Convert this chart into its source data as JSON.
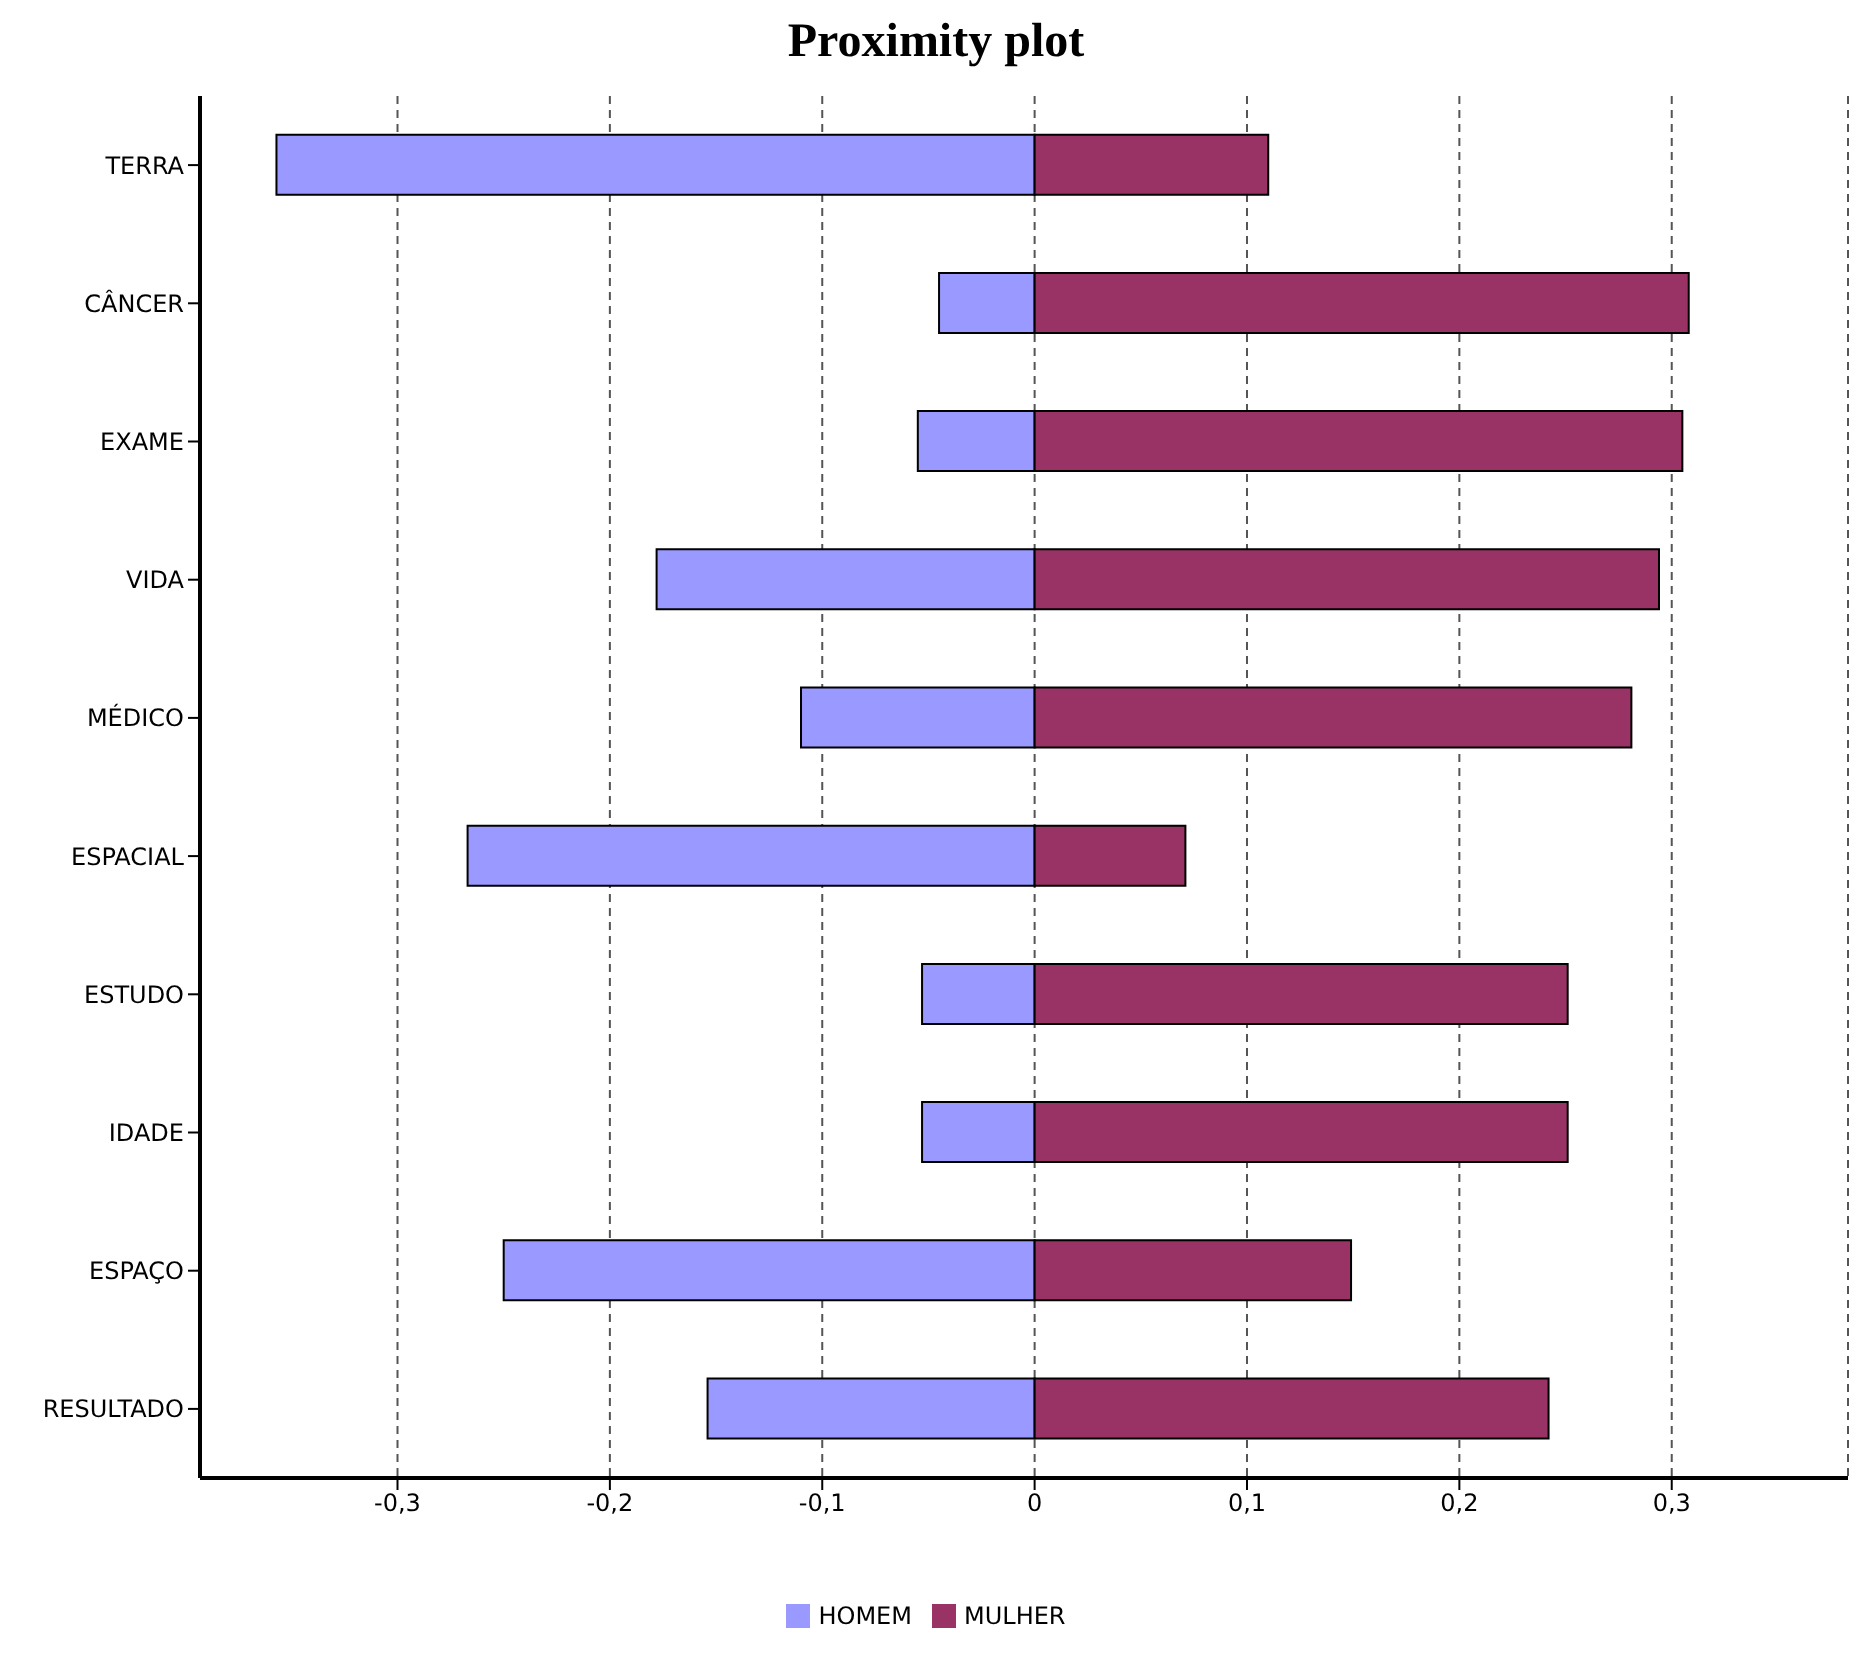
{
  "chart_data": {
    "type": "bar",
    "title": "Proximity plot",
    "orientation": "horizontal",
    "stacked": true,
    "categories": [
      "TERRA",
      "CÂNCER",
      "EXAME",
      "VIDA",
      "MÉDICO",
      "ESPACIAL",
      "ESTUDO",
      "IDADE",
      "ESPAÇO",
      "RESULTADO"
    ],
    "series": [
      {
        "name": "HOMEM",
        "color": "#9999ff",
        "values": [
          -0.357,
          -0.045,
          -0.055,
          -0.178,
          -0.11,
          -0.267,
          -0.053,
          -0.053,
          -0.25,
          -0.154
        ]
      },
      {
        "name": "MULHER",
        "color": "#993366",
        "values": [
          0.11,
          0.308,
          0.305,
          0.294,
          0.281,
          0.071,
          0.251,
          0.251,
          0.149,
          0.242
        ]
      }
    ],
    "xlim": [
      -0.393,
      0.383
    ],
    "xticks": [
      {
        "value": -0.3,
        "label": "-0,3"
      },
      {
        "value": -0.2,
        "label": "-0,2"
      },
      {
        "value": -0.1,
        "label": "-0,1"
      },
      {
        "value": 0,
        "label": "0"
      },
      {
        "value": 0.1,
        "label": "0,1"
      },
      {
        "value": 0.2,
        "label": "0,2"
      },
      {
        "value": 0.3,
        "label": "0,3"
      }
    ],
    "grid": "x",
    "line_style": "dashed",
    "legend": "bottom"
  }
}
